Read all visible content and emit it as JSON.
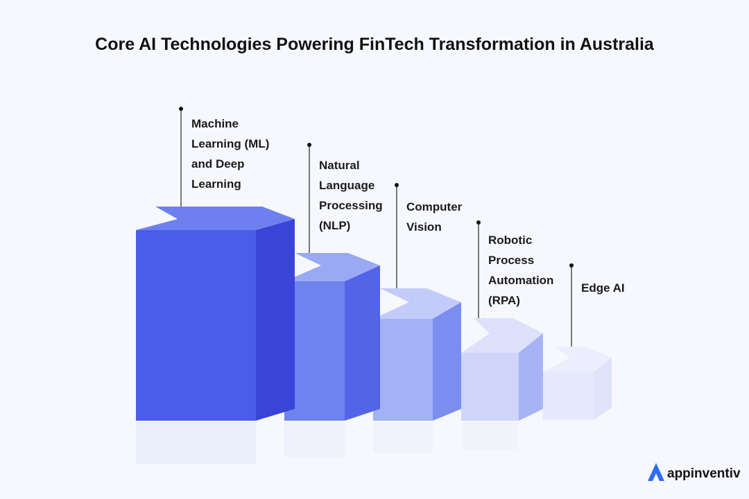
{
  "header": {
    "title": "Core AI Technologies Powering FinTech Transformation in Australia"
  },
  "items": [
    {
      "lines": [
        "Machine",
        "Learning (ML)",
        "and Deep",
        "Learning"
      ]
    },
    {
      "lines": [
        "Natural",
        "Language",
        "Processing",
        "(NLP)"
      ]
    },
    {
      "lines": [
        "Computer",
        "Vision"
      ]
    },
    {
      "lines": [
        "Robotic",
        "Process",
        "Automation",
        "(RPA)"
      ]
    },
    {
      "lines": [
        "Edge AI"
      ]
    }
  ],
  "logo": {
    "text": "appinventiv"
  }
}
